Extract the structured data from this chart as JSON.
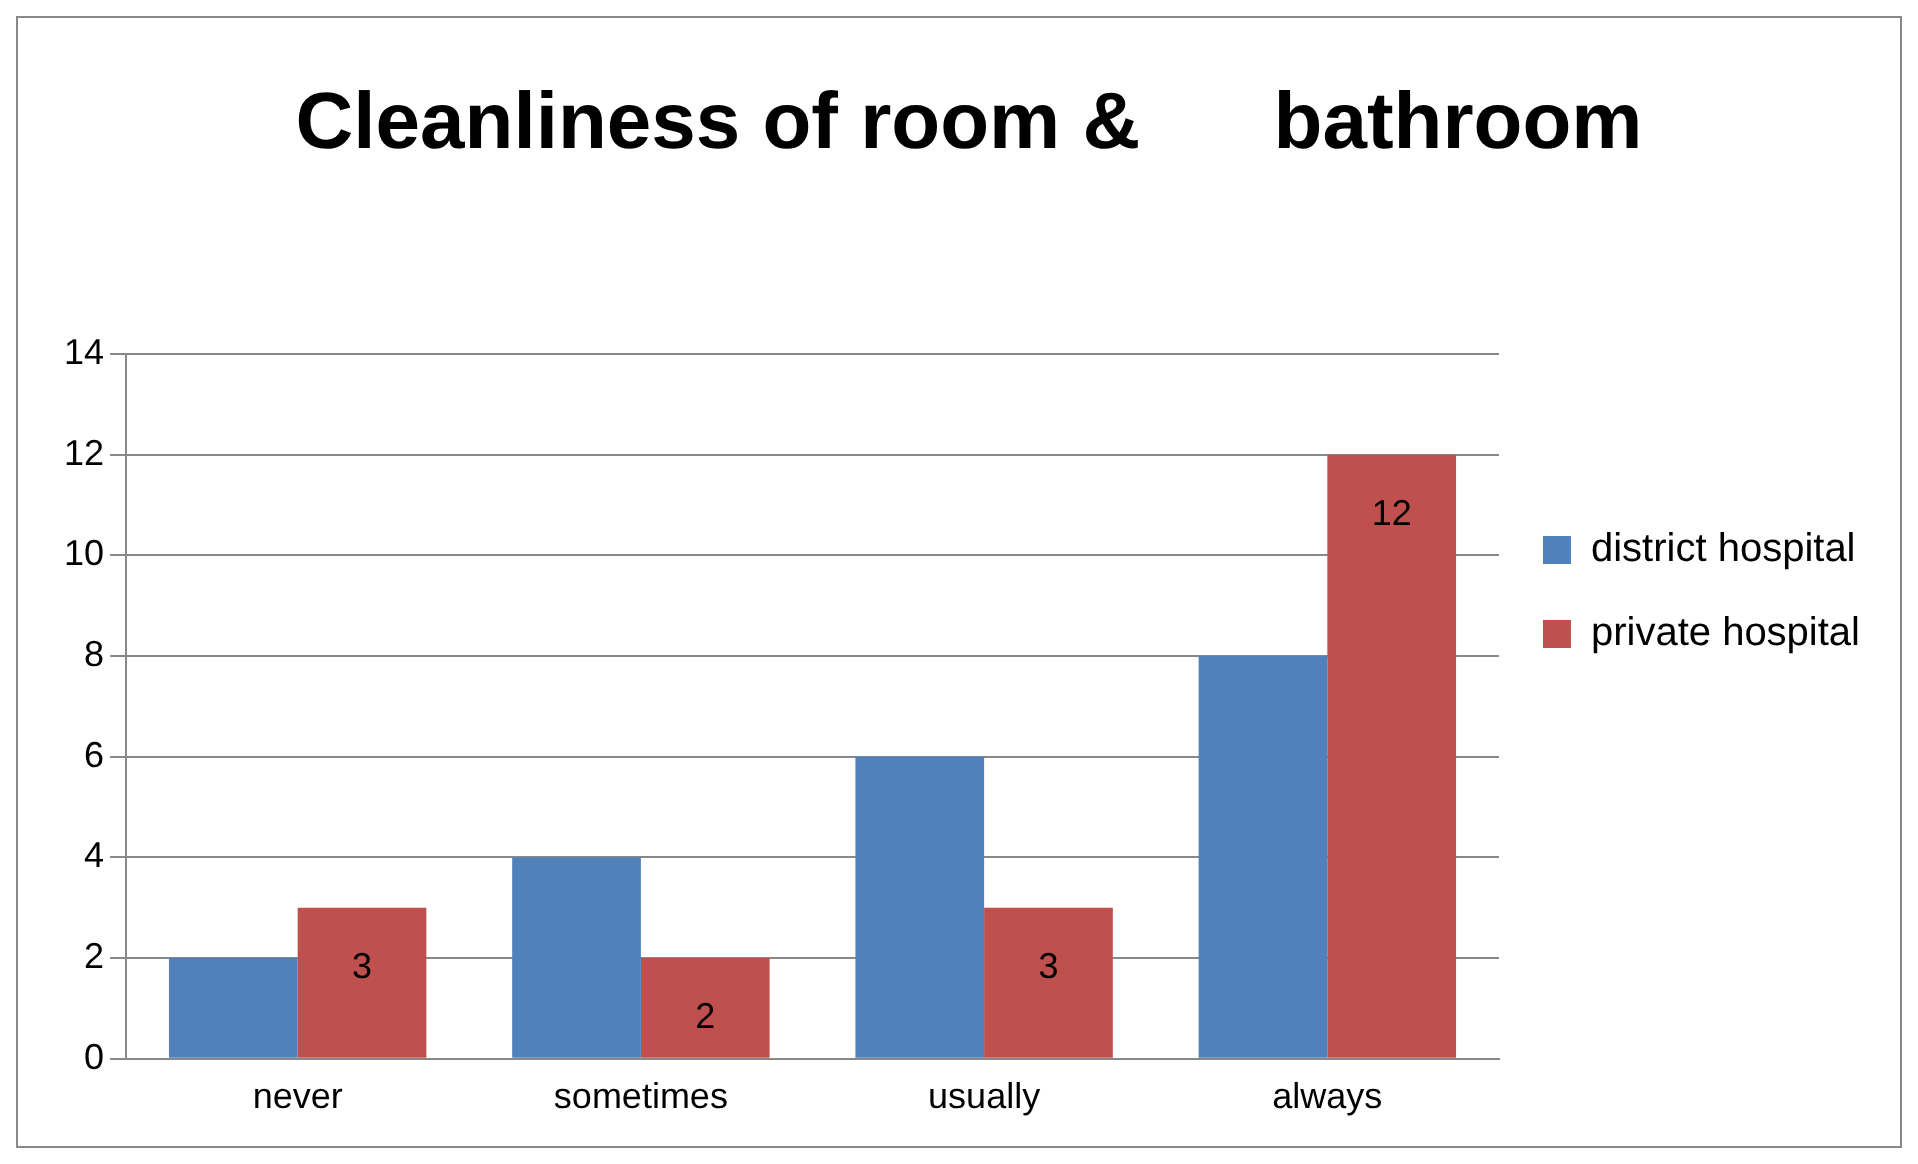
{
  "chart_data": {
    "type": "bar",
    "title": "Cleanliness of room &      bathroom",
    "categories": [
      "never",
      "sometimes",
      "usually",
      "always"
    ],
    "series": [
      {
        "name": "district hospital",
        "color": "#4f81bd",
        "values": [
          2,
          4,
          6,
          8
        ]
      },
      {
        "name": "private hospital",
        "color": "#c0504d",
        "values": [
          3,
          2,
          3,
          12
        ],
        "value_labels": [
          "3",
          "2",
          "3",
          "12"
        ]
      }
    ],
    "ylim": [
      0,
      14
    ],
    "yticks": [
      0,
      2,
      4,
      6,
      8,
      10,
      12,
      14
    ],
    "grid": "y",
    "legend": "right"
  }
}
